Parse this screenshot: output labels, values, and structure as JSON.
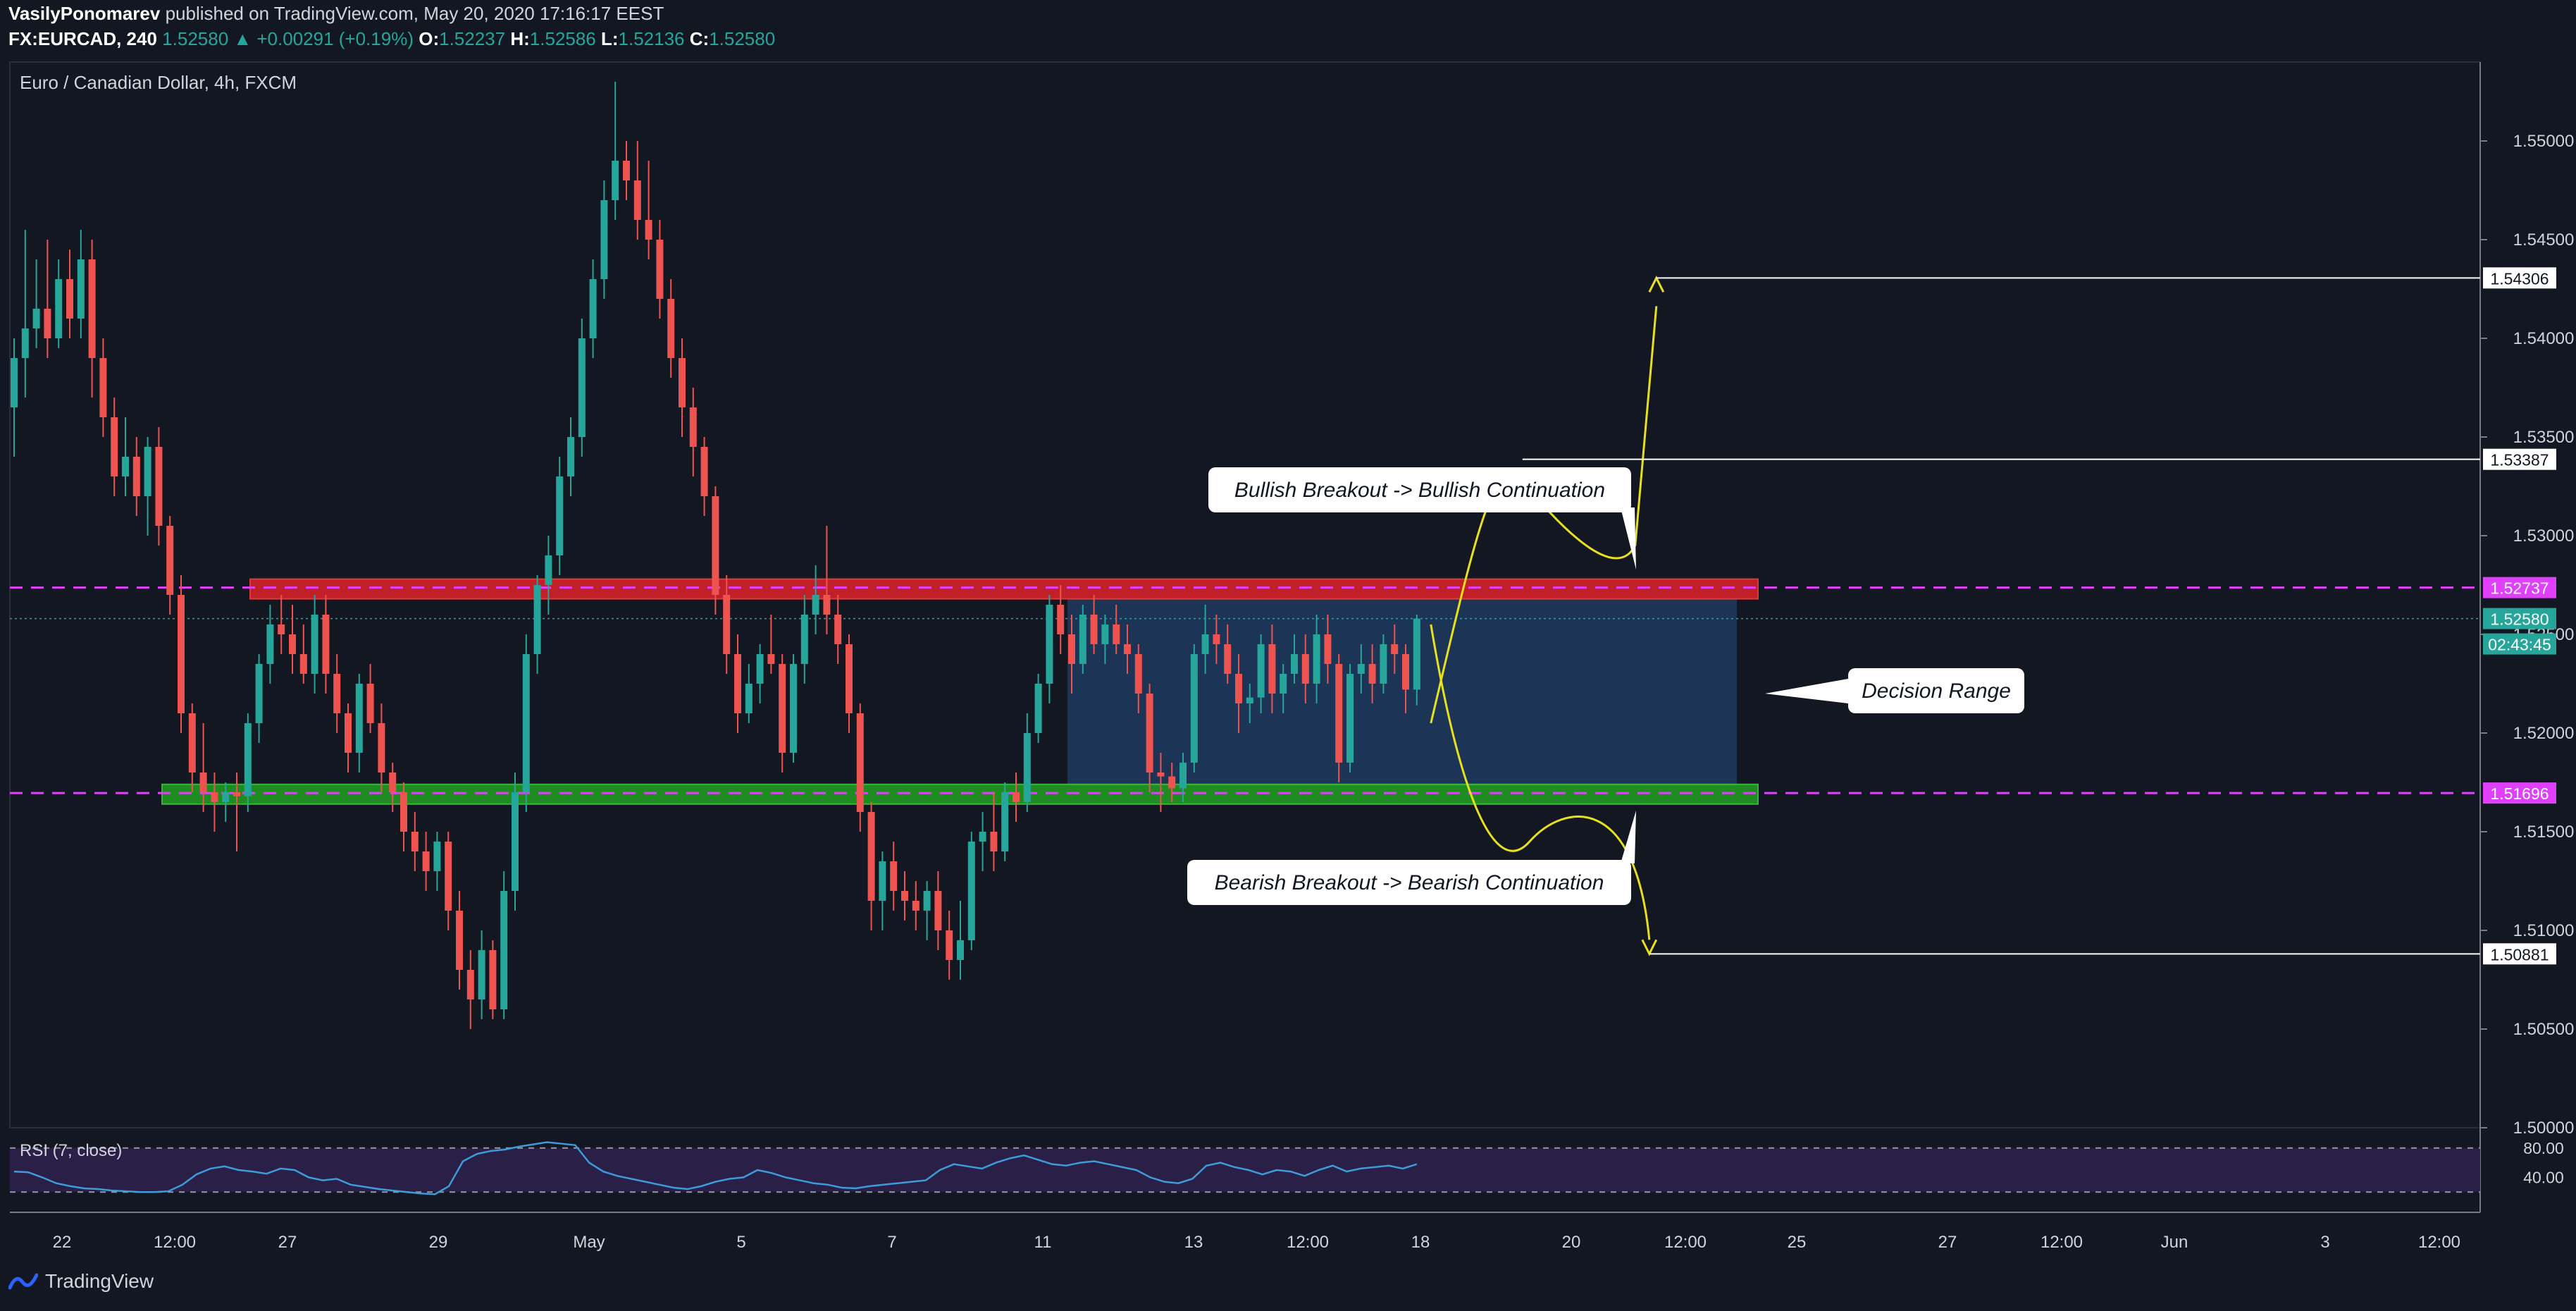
{
  "header": {
    "author": "VasilyPonomarev",
    "published_text": "published on TradingView.com, May 20, 2020 17:16:17 EEST",
    "symbol": "FX:EURCAD, 240",
    "last": "1.52580",
    "change_arrow": "▲",
    "change": "+0.00291 (+0.19%)",
    "o_label": "O:",
    "o": "1.52237",
    "h_label": "H:",
    "h": "1.52586",
    "l_label": "L:",
    "l": "1.52136",
    "c_label": "C:",
    "c": "1.52580"
  },
  "footer": {
    "brand": "TradingView"
  },
  "colors": {
    "background": "#131722",
    "up": "#26a69a",
    "down": "#ef5350",
    "resistance": "#e0222a",
    "support": "#21a121",
    "magenta": "#e040fb",
    "range": "#1e3a5f",
    "rsi": "#3d9bd9",
    "rsi_bg": "#2a1f47",
    "yellow": "#e6e01e"
  },
  "chart_data": {
    "type": "candlestick",
    "title": "Euro / Canadian Dollar, 4h, FXCM",
    "ylim": [
      1.5,
      1.554
    ],
    "y_ticks": [
      "1.55000",
      "1.54500",
      "1.54000",
      "1.53500",
      "1.53000",
      "1.52500",
      "1.52000",
      "1.51500",
      "1.51000",
      "1.50500",
      "1.50000"
    ],
    "x_ticks": [
      "22",
      "12:00",
      "27",
      "29",
      "May",
      "5",
      "7",
      "11",
      "13",
      "12:00",
      "18",
      "20",
      "12:00",
      "25",
      "27",
      "12:00",
      "Jun",
      "3",
      "12:00"
    ],
    "price_labels": [
      {
        "text": "1.54306",
        "kind": "target"
      },
      {
        "text": "1.53387",
        "kind": "target"
      },
      {
        "text": "1.52737",
        "kind": "level"
      },
      {
        "text": "1.52580",
        "kind": "last"
      },
      {
        "text": "02:43:45",
        "kind": "timer"
      },
      {
        "text": "1.51696",
        "kind": "level"
      },
      {
        "text": "1.50881",
        "kind": "target"
      }
    ],
    "levels": {
      "resistance": 1.52737,
      "support": 1.51696,
      "last": 1.5258,
      "target_up_1": 1.53387,
      "target_up_2": 1.54306,
      "target_down": 1.50881
    },
    "zones": {
      "resistance_zone": [
        1.5268,
        1.5278
      ],
      "support_zone": [
        1.5164,
        1.5174
      ],
      "decision_range": [
        1.5174,
        1.5268
      ]
    },
    "annotations": [
      "Bullish Breakout -> Bullish Continuation",
      "Decision Range",
      "Bearish Breakout -> Bearish Continuation"
    ],
    "candles": [
      [
        1.5365,
        1.54,
        1.534,
        1.539
      ],
      [
        1.539,
        1.5455,
        1.537,
        1.5405
      ],
      [
        1.5405,
        1.544,
        1.5395,
        1.5415
      ],
      [
        1.5415,
        1.545,
        1.539,
        1.54
      ],
      [
        1.54,
        1.544,
        1.5395,
        1.543
      ],
      [
        1.543,
        1.5445,
        1.54,
        1.541
      ],
      [
        1.541,
        1.5455,
        1.54,
        1.544
      ],
      [
        1.544,
        1.545,
        1.537,
        1.539
      ],
      [
        1.539,
        1.54,
        1.535,
        1.536
      ],
      [
        1.536,
        1.537,
        1.532,
        1.533
      ],
      [
        1.533,
        1.536,
        1.532,
        1.534
      ],
      [
        1.534,
        1.535,
        1.531,
        1.532
      ],
      [
        1.532,
        1.535,
        1.53,
        1.5345
      ],
      [
        1.5345,
        1.5355,
        1.5295,
        1.5305
      ],
      [
        1.5305,
        1.531,
        1.526,
        1.527
      ],
      [
        1.527,
        1.528,
        1.52,
        1.521
      ],
      [
        1.521,
        1.5215,
        1.517,
        1.518
      ],
      [
        1.518,
        1.5205,
        1.516,
        1.517
      ],
      [
        1.517,
        1.518,
        1.515,
        1.5165
      ],
      [
        1.5165,
        1.5175,
        1.5155,
        1.517
      ],
      [
        1.517,
        1.518,
        1.514,
        1.5168
      ],
      [
        1.5168,
        1.521,
        1.516,
        1.5205
      ],
      [
        1.5205,
        1.524,
        1.5195,
        1.5235
      ],
      [
        1.5235,
        1.5265,
        1.5225,
        1.5255
      ],
      [
        1.5255,
        1.527,
        1.524,
        1.525
      ],
      [
        1.525,
        1.5265,
        1.523,
        1.524
      ],
      [
        1.524,
        1.5255,
        1.5225,
        1.523
      ],
      [
        1.523,
        1.527,
        1.522,
        1.526
      ],
      [
        1.526,
        1.527,
        1.522,
        1.523
      ],
      [
        1.523,
        1.524,
        1.52,
        1.521
      ],
      [
        1.521,
        1.5215,
        1.518,
        1.519
      ],
      [
        1.519,
        1.523,
        1.518,
        1.5225
      ],
      [
        1.5225,
        1.5235,
        1.52,
        1.5205
      ],
      [
        1.5205,
        1.5215,
        1.517,
        1.518
      ],
      [
        1.518,
        1.5185,
        1.516,
        1.517
      ],
      [
        1.517,
        1.5175,
        1.514,
        1.515
      ],
      [
        1.515,
        1.516,
        1.513,
        1.514
      ],
      [
        1.514,
        1.515,
        1.512,
        1.513
      ],
      [
        1.513,
        1.515,
        1.512,
        1.5145
      ],
      [
        1.5145,
        1.515,
        1.51,
        1.511
      ],
      [
        1.511,
        1.512,
        1.507,
        1.508
      ],
      [
        1.508,
        1.509,
        1.505,
        1.5065
      ],
      [
        1.5065,
        1.51,
        1.5055,
        1.509
      ],
      [
        1.509,
        1.5095,
        1.5055,
        1.506
      ],
      [
        1.506,
        1.513,
        1.5055,
        1.512
      ],
      [
        1.512,
        1.518,
        1.511,
        1.517
      ],
      [
        1.517,
        1.525,
        1.516,
        1.524
      ],
      [
        1.524,
        1.528,
        1.523,
        1.5275
      ],
      [
        1.5275,
        1.53,
        1.526,
        1.529
      ],
      [
        1.529,
        1.534,
        1.528,
        1.533
      ],
      [
        1.533,
        1.536,
        1.532,
        1.535
      ],
      [
        1.535,
        1.541,
        1.534,
        1.54
      ],
      [
        1.54,
        1.544,
        1.539,
        1.543
      ],
      [
        1.543,
        1.548,
        1.542,
        1.547
      ],
      [
        1.547,
        1.553,
        1.546,
        1.549
      ],
      [
        1.549,
        1.55,
        1.547,
        1.548
      ],
      [
        1.548,
        1.55,
        1.545,
        1.546
      ],
      [
        1.546,
        1.549,
        1.544,
        1.545
      ],
      [
        1.545,
        1.546,
        1.541,
        1.542
      ],
      [
        1.542,
        1.543,
        1.538,
        1.539
      ],
      [
        1.539,
        1.54,
        1.535,
        1.5365
      ],
      [
        1.5365,
        1.5375,
        1.533,
        1.5345
      ],
      [
        1.5345,
        1.535,
        1.531,
        1.532
      ],
      [
        1.532,
        1.5325,
        1.526,
        1.527
      ],
      [
        1.527,
        1.528,
        1.523,
        1.524
      ],
      [
        1.524,
        1.525,
        1.52,
        1.521
      ],
      [
        1.521,
        1.5235,
        1.5205,
        1.5225
      ],
      [
        1.5225,
        1.5245,
        1.5215,
        1.524
      ],
      [
        1.524,
        1.526,
        1.523,
        1.5235
      ],
      [
        1.5235,
        1.524,
        1.518,
        1.519
      ],
      [
        1.519,
        1.524,
        1.5185,
        1.5235
      ],
      [
        1.5235,
        1.527,
        1.5225,
        1.526
      ],
      [
        1.526,
        1.5285,
        1.525,
        1.527
      ],
      [
        1.527,
        1.5305,
        1.525,
        1.526
      ],
      [
        1.526,
        1.527,
        1.5235,
        1.5245
      ],
      [
        1.5245,
        1.525,
        1.52,
        1.521
      ],
      [
        1.521,
        1.5215,
        1.515,
        1.516
      ],
      [
        1.516,
        1.5165,
        1.51,
        1.5115
      ],
      [
        1.5115,
        1.514,
        1.51,
        1.5135
      ],
      [
        1.5135,
        1.5145,
        1.511,
        1.512
      ],
      [
        1.512,
        1.513,
        1.5105,
        1.5115
      ],
      [
        1.5115,
        1.5125,
        1.51,
        1.511
      ],
      [
        1.511,
        1.5125,
        1.5095,
        1.512
      ],
      [
        1.512,
        1.513,
        1.509,
        1.51
      ],
      [
        1.51,
        1.511,
        1.5075,
        1.5085
      ],
      [
        1.5085,
        1.5115,
        1.5075,
        1.5095
      ],
      [
        1.5095,
        1.515,
        1.509,
        1.5145
      ],
      [
        1.5145,
        1.516,
        1.513,
        1.515
      ],
      [
        1.515,
        1.517,
        1.513,
        1.514
      ],
      [
        1.514,
        1.5175,
        1.5135,
        1.517
      ],
      [
        1.517,
        1.518,
        1.5155,
        1.5165
      ],
      [
        1.5165,
        1.521,
        1.516,
        1.52
      ],
      [
        1.52,
        1.523,
        1.5195,
        1.5225
      ],
      [
        1.5225,
        1.527,
        1.5215,
        1.5265
      ],
      [
        1.5265,
        1.5275,
        1.524,
        1.525
      ],
      [
        1.525,
        1.526,
        1.522,
        1.5235
      ],
      [
        1.5235,
        1.5265,
        1.523,
        1.526
      ],
      [
        1.526,
        1.527,
        1.524,
        1.5245
      ],
      [
        1.5245,
        1.526,
        1.5235,
        1.5255
      ],
      [
        1.5255,
        1.5265,
        1.524,
        1.5245
      ],
      [
        1.5245,
        1.5255,
        1.523,
        1.524
      ],
      [
        1.524,
        1.5245,
        1.521,
        1.522
      ],
      [
        1.522,
        1.5225,
        1.517,
        1.518
      ],
      [
        1.518,
        1.519,
        1.516,
        1.5178
      ],
      [
        1.5178,
        1.5185,
        1.5165,
        1.5172
      ],
      [
        1.5172,
        1.519,
        1.5165,
        1.5185
      ],
      [
        1.5185,
        1.5245,
        1.518,
        1.524
      ],
      [
        1.524,
        1.5265,
        1.523,
        1.525
      ],
      [
        1.525,
        1.526,
        1.5235,
        1.5245
      ],
      [
        1.5245,
        1.5255,
        1.5225,
        1.523
      ],
      [
        1.523,
        1.524,
        1.52,
        1.5215
      ],
      [
        1.5215,
        1.5225,
        1.5205,
        1.5218
      ],
      [
        1.5218,
        1.525,
        1.521,
        1.5245
      ],
      [
        1.5245,
        1.5255,
        1.521,
        1.522
      ],
      [
        1.522,
        1.5235,
        1.521,
        1.523
      ],
      [
        1.523,
        1.525,
        1.5225,
        1.524
      ],
      [
        1.524,
        1.525,
        1.5215,
        1.5225
      ],
      [
        1.5225,
        1.526,
        1.5215,
        1.525
      ],
      [
        1.525,
        1.526,
        1.5225,
        1.5235
      ],
      [
        1.5235,
        1.524,
        1.5175,
        1.5185
      ],
      [
        1.5185,
        1.5235,
        1.518,
        1.523
      ],
      [
        1.523,
        1.5245,
        1.522,
        1.5235
      ],
      [
        1.5235,
        1.5245,
        1.5215,
        1.5225
      ],
      [
        1.5225,
        1.525,
        1.522,
        1.5245
      ],
      [
        1.5245,
        1.5255,
        1.523,
        1.524
      ],
      [
        1.524,
        1.5245,
        1.521,
        1.5222
      ],
      [
        1.5222,
        1.526,
        1.5214,
        1.5258
      ]
    ],
    "rsi": {
      "label": "RSI (7, close)",
      "ylim": [
        0,
        100
      ],
      "levels": [
        80,
        20
      ],
      "y_ticks": [
        "80.00",
        "40.00"
      ],
      "values": [
        48,
        47,
        40,
        32,
        28,
        25,
        24,
        22,
        21,
        20,
        20,
        21,
        30,
        44,
        52,
        55,
        50,
        48,
        45,
        52,
        50,
        40,
        36,
        38,
        30,
        27,
        24,
        22,
        20,
        18,
        17,
        28,
        62,
        72,
        76,
        78,
        82,
        85,
        88,
        86,
        84,
        60,
        48,
        42,
        38,
        34,
        30,
        26,
        24,
        28,
        34,
        38,
        40,
        50,
        46,
        40,
        36,
        32,
        30,
        26,
        25,
        28,
        30,
        32,
        34,
        36,
        50,
        58,
        55,
        52,
        60,
        66,
        70,
        64,
        58,
        56,
        60,
        62,
        58,
        54,
        50,
        40,
        34,
        32,
        38,
        56,
        60,
        54,
        50,
        44,
        50,
        48,
        42,
        50,
        56,
        48,
        52,
        54,
        56,
        52,
        58
      ]
    }
  }
}
